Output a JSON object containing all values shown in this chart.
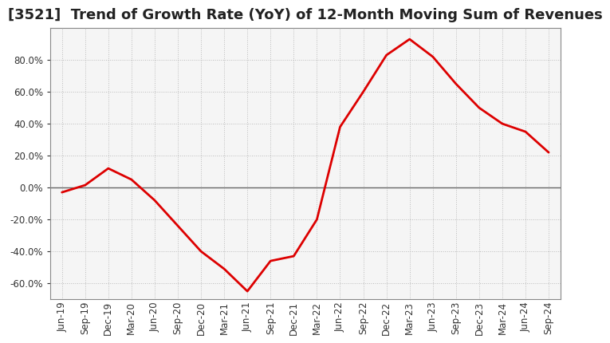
{
  "title": "[3521]  Trend of Growth Rate (YoY) of 12-Month Moving Sum of Revenues",
  "line_color": "#dd0000",
  "background_color": "#ffffff",
  "plot_bg_color": "#f5f5f5",
  "grid_color": "#bbbbbb",
  "x_labels": [
    "Jun-19",
    "Sep-19",
    "Dec-19",
    "Mar-20",
    "Jun-20",
    "Sep-20",
    "Dec-20",
    "Mar-21",
    "Jun-21",
    "Sep-21",
    "Dec-21",
    "Mar-22",
    "Jun-22",
    "Sep-22",
    "Dec-22",
    "Mar-23",
    "Jun-23",
    "Sep-23",
    "Dec-23",
    "Mar-24",
    "Jun-24",
    "Sep-24"
  ],
  "y_values": [
    -3.0,
    1.5,
    12.0,
    5.0,
    -8.0,
    -24.0,
    -40.0,
    -51.0,
    -65.0,
    -46.0,
    -43.0,
    -20.0,
    38.0,
    60.0,
    83.0,
    93.0,
    82.0,
    65.0,
    50.0,
    40.0,
    35.0,
    22.0
  ],
  "ylim": [
    -70,
    100
  ],
  "yticks": [
    -60.0,
    -40.0,
    -20.0,
    0.0,
    20.0,
    40.0,
    60.0,
    80.0
  ],
  "title_fontsize": 13,
  "tick_fontsize": 8.5,
  "line_width": 2.0
}
